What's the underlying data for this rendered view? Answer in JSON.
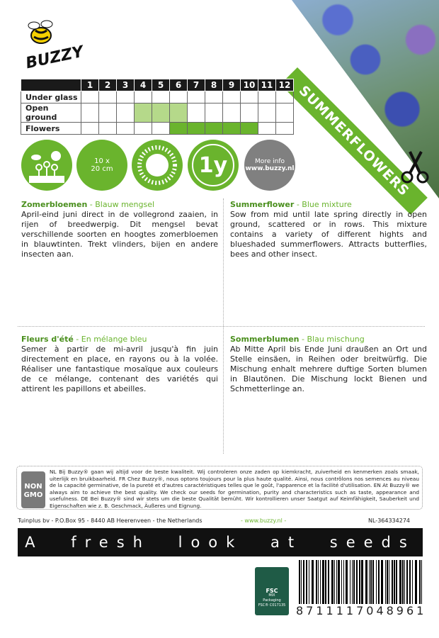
{
  "brand": {
    "name": "BUZZY",
    "banner": "SUMMERFLOWERS"
  },
  "calendar": {
    "months": [
      "1",
      "2",
      "3",
      "4",
      "5",
      "6",
      "7",
      "8",
      "9",
      "10",
      "11",
      "12"
    ],
    "rows": [
      {
        "label": "Under glass",
        "light": [],
        "dark": []
      },
      {
        "label": "Open ground",
        "light": [
          4,
          5,
          6
        ],
        "dark": []
      },
      {
        "label": "Flowers",
        "light": [],
        "dark": [
          6,
          7,
          8,
          9,
          10
        ]
      }
    ]
  },
  "icons": [
    {
      "name": "sowing-outdoors-icon"
    },
    {
      "name": "spacing-icon",
      "text": "10 x 20 cm"
    },
    {
      "name": "full-sun-icon"
    },
    {
      "name": "annual-icon",
      "text": "1y"
    },
    {
      "name": "more-info-icon",
      "line1": "More info",
      "line2": "www.buzzy.nl"
    }
  ],
  "colors": {
    "green": "#6ab42d",
    "light_green": "#b5d98a",
    "dark": "#1a1a1a"
  },
  "texts": [
    {
      "title": "Zomerbloemen",
      "subtitle": " - Blauw mengsel",
      "body": "April-eind juni direct in de vollegrond zaaien, in rijen of breedwerpig. Dit mengsel bevat verschillende soorten en hoogtes zomerbloemen in blauwtinten. Trekt vlinders, bijen en andere insecten aan."
    },
    {
      "title": "Summerflower",
      "subtitle": " - Blue mixture",
      "body": "Sow from mid until late spring directly in open ground, scattered or in rows. This mixture contains a variety of different hights and blueshaded summerflowers. Attracts butterflies, bees and other insect."
    },
    {
      "title": "Fleurs d'été",
      "subtitle": " - En mélange bleu",
      "body": "Semer à partir de mi-avril jusqu'à fin juin directement en place, en rayons ou à la volée. Réaliser une fantastique mosaïque aux couleurs de ce mélange, contenant des variétés qui attirent les papillons et abeilles."
    },
    {
      "title": "Sommerblumen",
      "subtitle": " - Blau mischung",
      "body": "Ab Mitte April bis Ende Juni draußen an Ort und Stelle einsäen, in Reihen oder breitwürfig. Die Mischung enhalt mehrere duftige Sorten blumen in Blautönen. Die Mischung lockt Bienen und Schmetterlinge an."
    }
  ],
  "gmo": {
    "badge_line1": "NON",
    "badge_line2": "GMO",
    "text": "NL Bij Buzzy® gaan wij altijd voor de beste kwaliteit. Wij controleren onze zaden op kiemkracht, zuiverheid en kenmerken zoals smaak, uiterlijk en bruikbaarheid. FR Chez Buzzy®, nous optons toujours pour la plus haute qualité. Ainsi, nous contrôlons nos semences au niveau de la capacité germinative, de la pureté et d'autres caractéristiques telles que le goût, l'apparence et la facilité d'utilisation. EN At Buzzy® we always aim to achieve the best quality. We check our seeds for germination, purity and characteristics such as taste, appearance and usefulness. DE Bei Buzzy® sind wir stets um die beste Qualität bemüht. Wir kontrollieren unser Saatgut auf Keimfähigkeit, Sauberkeit und Eigenschaften wie z. B. Geschmack, Äußeres und Eignung."
  },
  "footer": {
    "address": "Tuinplus bv - P.O.Box 95 - 8440 AB Heerenveen - the Netherlands",
    "website": "- www.buzzy.nl -",
    "code": "NL-364334274"
  },
  "tagline": "A fresh look at seeds",
  "fsc": {
    "logo": "FSC",
    "mix": "MIX",
    "packaging": "Packaging",
    "code": "FSC® C017135"
  },
  "barcode": "8711117048961"
}
